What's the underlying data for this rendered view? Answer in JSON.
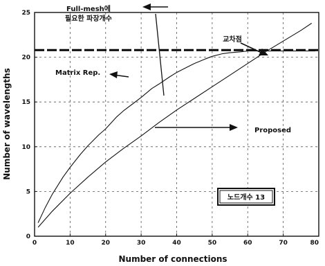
{
  "chart_data": {
    "type": "line",
    "title": "",
    "xlabel": "Number of connections",
    "ylabel": "Number of wavelengths",
    "xlim": [
      0,
      80
    ],
    "ylim": [
      0,
      25
    ],
    "xticks": [
      0,
      10,
      20,
      30,
      40,
      50,
      60,
      70,
      80
    ],
    "yticks": [
      0,
      5,
      10,
      15,
      20,
      25
    ],
    "grid": true,
    "grid_style": "dashed",
    "series": [
      {
        "name": "Matrix Rep.",
        "style": "solid",
        "x": [
          1,
          3,
          5,
          8,
          10,
          13,
          15,
          18,
          20,
          23,
          25,
          28,
          30,
          33,
          35,
          38,
          40,
          43,
          45,
          48,
          50,
          53,
          55,
          58,
          60,
          63,
          65,
          68,
          70,
          73,
          75,
          78,
          79
        ],
        "y": [
          1.5,
          3.2,
          4.7,
          6.6,
          7.7,
          9.2,
          10.1,
          11.3,
          12.0,
          13.3,
          14.0,
          14.9,
          15.5,
          16.5,
          17.0,
          17.8,
          18.3,
          18.9,
          19.3,
          19.8,
          20.1,
          20.4,
          20.5,
          20.6,
          20.7,
          20.7,
          20.7,
          20.7,
          20.7,
          20.7,
          20.7,
          20.7,
          20.7
        ]
      },
      {
        "name": "Proposed",
        "style": "solid",
        "x": [
          1,
          5,
          10,
          15,
          20,
          25,
          30,
          35,
          40,
          45,
          50,
          55,
          60,
          65,
          70,
          75,
          78
        ],
        "y": [
          1.0,
          2.8,
          4.8,
          6.6,
          8.3,
          9.8,
          11.2,
          12.7,
          14.1,
          15.4,
          16.7,
          18.0,
          19.3,
          20.6,
          21.8,
          23.0,
          23.8
        ]
      },
      {
        "name": "Full-mesh에 필요한 파장개수",
        "style": "dashed",
        "x": [
          0,
          80
        ],
        "y": [
          20.8,
          20.8
        ]
      }
    ],
    "annotations": {
      "fullmesh_line1": "Full-mesh에",
      "fullmesh_line2": "필요한 파장개수",
      "crossing": "교차점",
      "matrix": "Matrix Rep.",
      "proposed": "Proposed",
      "node_box": "노드개수 13"
    }
  }
}
